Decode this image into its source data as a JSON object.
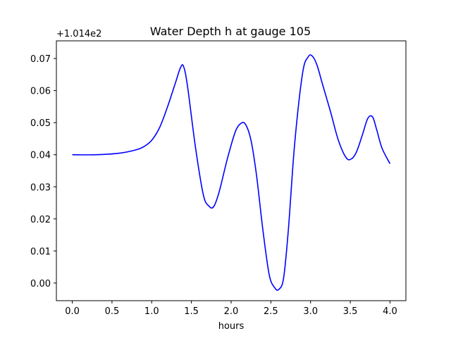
{
  "chart_data": {
    "type": "line",
    "title": "Water Depth h at gauge 105",
    "xlabel": "hours",
    "ylabel": "",
    "offset_label": "+1.014e2",
    "xlim": [
      -0.2,
      4.2
    ],
    "ylim": [
      -0.0055,
      0.0755
    ],
    "xticks": [
      0.0,
      0.5,
      1.0,
      1.5,
      2.0,
      2.5,
      3.0,
      3.5,
      4.0
    ],
    "xtick_labels": [
      "0.0",
      "0.5",
      "1.0",
      "1.5",
      "2.0",
      "2.5",
      "3.0",
      "3.5",
      "4.0"
    ],
    "yticks": [
      0.0,
      0.01,
      0.02,
      0.03,
      0.04,
      0.05,
      0.06,
      0.07
    ],
    "ytick_labels": [
      "0.00",
      "0.01",
      "0.02",
      "0.03",
      "0.04",
      "0.05",
      "0.06",
      "0.07"
    ],
    "grid": false,
    "series": [
      {
        "color": "#0000ff",
        "x": [
          0.0,
          0.3,
          0.6,
          0.8,
          0.9,
          1.0,
          1.1,
          1.2,
          1.3,
          1.36,
          1.4,
          1.45,
          1.55,
          1.65,
          1.72,
          1.78,
          1.85,
          1.95,
          2.05,
          2.12,
          2.18,
          2.25,
          2.32,
          2.4,
          2.48,
          2.55,
          2.6,
          2.66,
          2.72,
          2.8,
          2.9,
          2.97,
          3.02,
          3.08,
          3.15,
          3.25,
          3.35,
          3.45,
          3.52,
          3.58,
          3.65,
          3.72,
          3.78,
          3.83,
          3.9,
          4.0
        ],
        "y": [
          0.04,
          0.04,
          0.0405,
          0.0415,
          0.0425,
          0.0445,
          0.0485,
          0.055,
          0.0625,
          0.067,
          0.0676,
          0.0615,
          0.0425,
          0.0275,
          0.024,
          0.0238,
          0.0285,
          0.0385,
          0.047,
          0.0497,
          0.0495,
          0.0445,
          0.0335,
          0.0165,
          0.0025,
          -0.0015,
          -0.002,
          0.0015,
          0.0165,
          0.0435,
          0.0655,
          0.0705,
          0.0708,
          0.068,
          0.062,
          0.0535,
          0.0445,
          0.039,
          0.0388,
          0.041,
          0.046,
          0.0513,
          0.0518,
          0.048,
          0.042,
          0.0372
        ]
      }
    ]
  }
}
